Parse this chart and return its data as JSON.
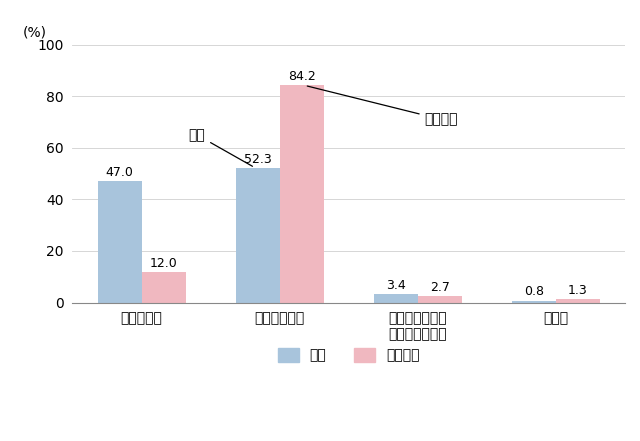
{
  "categories": [
    "家族・親族",
    "介護サービス",
    "ボランティア、\n近隣の人、友人",
    "いない"
  ],
  "zentai": [
    47.0,
    52.3,
    3.4,
    0.8
  ],
  "tandoku": [
    12.0,
    84.2,
    2.7,
    1.3
  ],
  "zentai_color": "#a8c4dc",
  "tandoku_color": "#f0b8c0",
  "bar_width": 0.32,
  "ylim": [
    0,
    100
  ],
  "yticks": [
    0,
    20,
    40,
    60,
    80,
    100
  ],
  "ylabel": "(%)",
  "legend_zentai": "全体",
  "legend_tandoku": "単独世帯",
  "annotation_zentai": "全体",
  "annotation_tandoku": "単独世帯",
  "background_color": "#ffffff"
}
